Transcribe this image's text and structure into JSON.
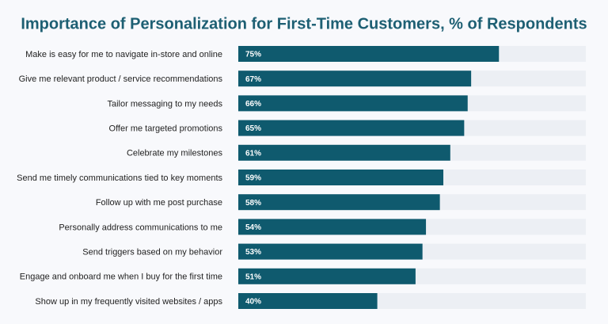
{
  "chart_data": {
    "type": "bar",
    "orientation": "horizontal",
    "title": "Importance of Personalization for First-Time Customers, % of Respondents",
    "categories": [
      "Make is easy for me to navigate in-store and online",
      "Give me relevant product / service recommendations",
      "Tailor messaging to my needs",
      "Offer me targeted promotions",
      "Celebrate my milestones",
      "Send me timely communications tied to key moments",
      "Follow up with me post purchase",
      "Personally address communications to me",
      "Send triggers based on my behavior",
      "Engage and onboard me when I buy for the first time",
      "Show up in my frequently visited websites / apps"
    ],
    "values": [
      75,
      67,
      66,
      65,
      61,
      59,
      58,
      54,
      53,
      51,
      40
    ],
    "value_labels": [
      "75%",
      "67%",
      "66%",
      "65%",
      "61%",
      "59%",
      "58%",
      "54%",
      "53%",
      "51%",
      "40%"
    ],
    "color": "#0f5a6e",
    "track_color": "#eceff4",
    "xlim": [
      0,
      100
    ]
  }
}
